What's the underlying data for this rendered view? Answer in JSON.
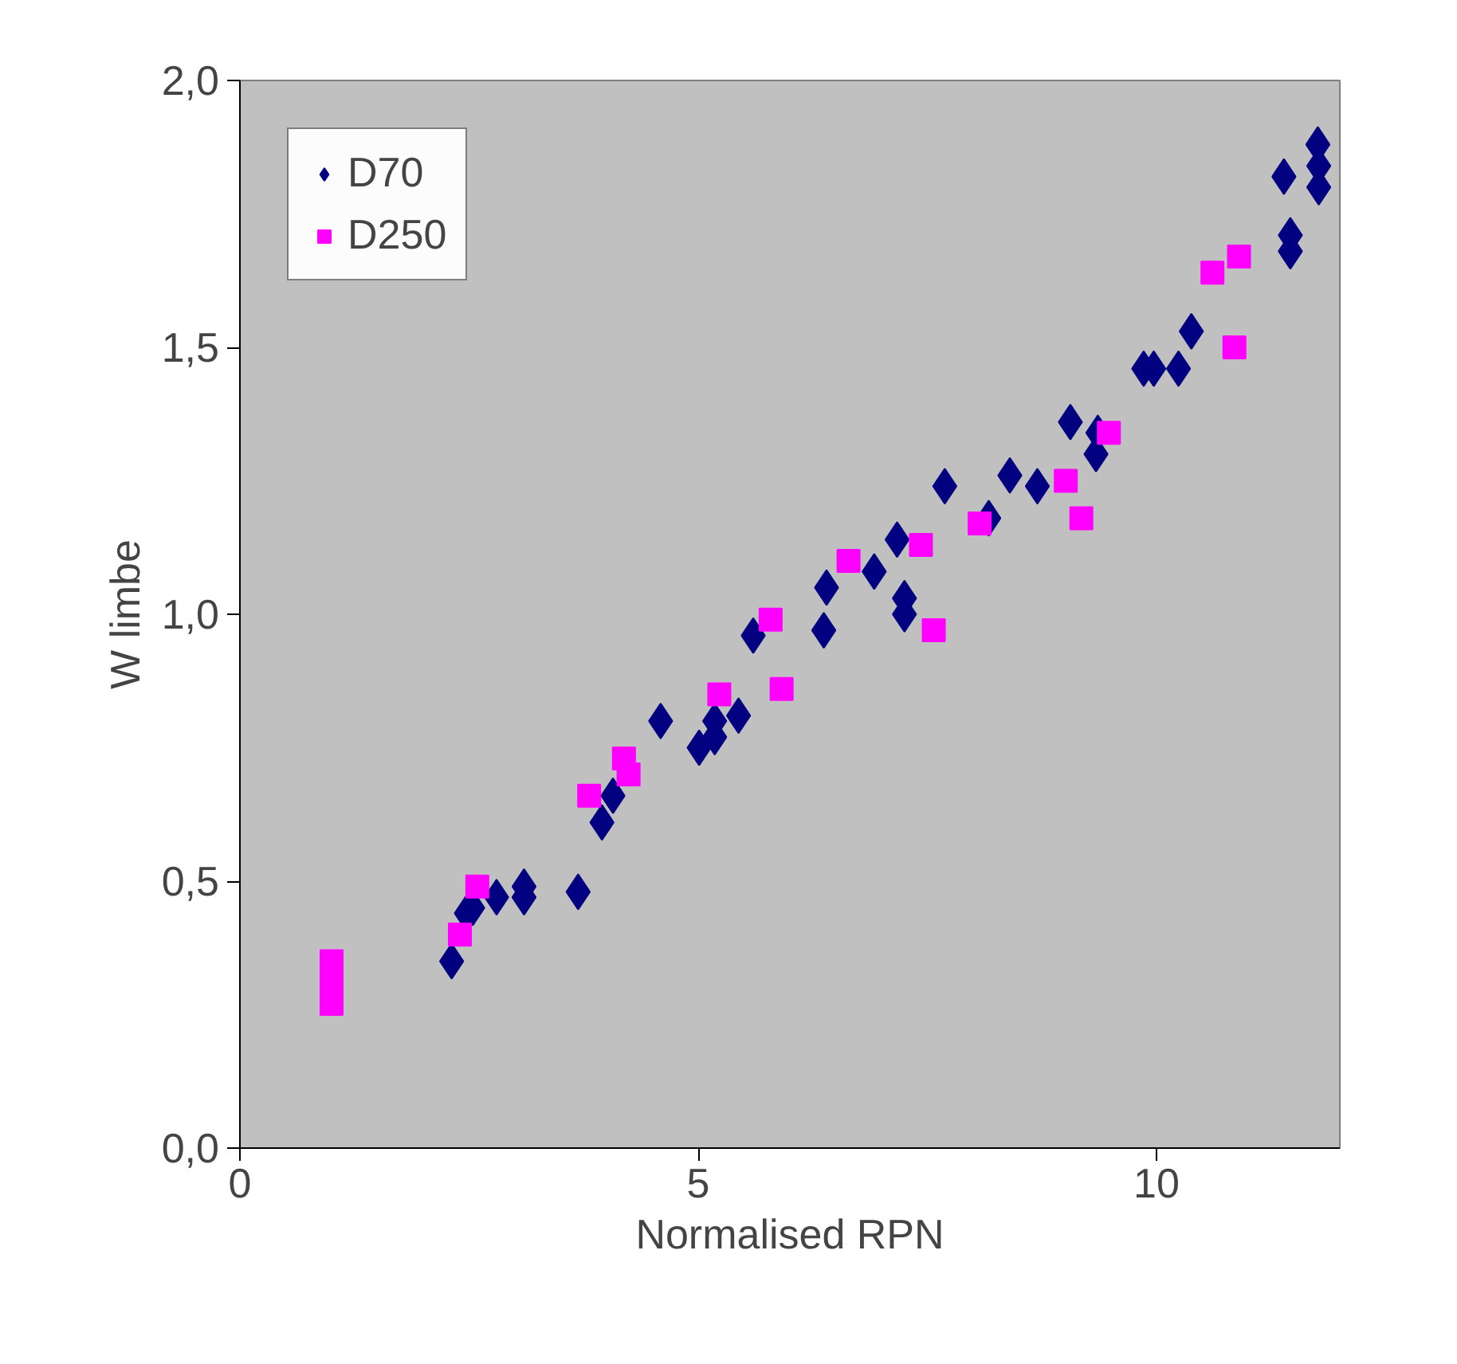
{
  "chart_data": {
    "type": "scatter",
    "xlabel": "Normalised RPN",
    "ylabel": "W limbe",
    "xlim": [
      0,
      12
    ],
    "ylim": [
      0,
      2
    ],
    "xticks": [
      0,
      5,
      10
    ],
    "yticks": [
      {
        "value": 0,
        "label": "0,0"
      },
      {
        "value": 0.5,
        "label": "0,5"
      },
      {
        "value": 1,
        "label": "1,0"
      },
      {
        "value": 1.5,
        "label": "1,5"
      },
      {
        "value": 2,
        "label": "2,0"
      }
    ],
    "grid": false,
    "legend": "top left",
    "series": [
      {
        "name": "D70",
        "color": "#000080",
        "marker": "diamond",
        "x": [
          2.31,
          2.47,
          2.54,
          2.8,
          3.1,
          3.1,
          3.69,
          3.95,
          4.07,
          4.59,
          5.01,
          5.18,
          5.18,
          5.44,
          5.6,
          6.37,
          6.4,
          6.92,
          7.17,
          7.25,
          7.25,
          7.69,
          8.17,
          8.4,
          8.7,
          9.06,
          9.34,
          9.36,
          9.86,
          9.97,
          10.24,
          10.38,
          11.39,
          11.46,
          11.46,
          11.76,
          11.77,
          11.77
        ],
        "values": [
          0.35,
          0.44,
          0.45,
          0.47,
          0.49,
          0.47,
          0.48,
          0.61,
          0.66,
          0.8,
          0.75,
          0.77,
          0.8,
          0.81,
          0.96,
          0.97,
          1.05,
          1.08,
          1.14,
          1.03,
          1.0,
          1.24,
          1.18,
          1.26,
          1.24,
          1.36,
          1.3,
          1.34,
          1.46,
          1.46,
          1.46,
          1.53,
          1.82,
          1.71,
          1.68,
          1.88,
          1.84,
          1.8
        ]
      },
      {
        "name": "D250",
        "color": "#ff00ff",
        "marker": "square",
        "x": [
          1.0,
          1.0,
          1.0,
          2.4,
          2.59,
          3.81,
          4.19,
          4.24,
          5.23,
          5.79,
          5.91,
          6.64,
          7.43,
          7.57,
          8.07,
          9.01,
          9.18,
          9.48,
          10.61,
          10.9,
          10.85
        ],
        "values": [
          0.35,
          0.31,
          0.27,
          0.4,
          0.49,
          0.66,
          0.73,
          0.7,
          0.85,
          0.99,
          0.86,
          1.1,
          1.13,
          0.97,
          1.17,
          1.25,
          1.18,
          1.34,
          1.64,
          1.67,
          1.5
        ]
      }
    ]
  }
}
